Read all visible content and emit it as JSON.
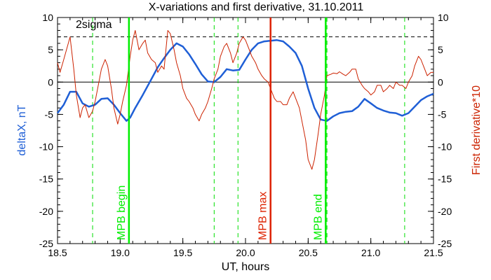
{
  "chart_data": {
    "type": "line",
    "title": "X-variations and first derivative, 31.10.2011",
    "xlabel": "UT, hours",
    "ylabel_left": "deltaX, nT",
    "ylabel_right": "First derivative*10",
    "xlim": [
      18.5,
      21.5
    ],
    "ylim": [
      -25,
      10
    ],
    "x_ticks": [
      "18.5",
      "19.0",
      "19.5",
      "20.0",
      "20.5",
      "21.0",
      "21.5"
    ],
    "y_ticks": [
      "10",
      "5",
      "0",
      "-5",
      "-10",
      "-15",
      "-20",
      "-25"
    ],
    "series": [
      {
        "name": "deltaX, nT",
        "color": "#1f5fd6",
        "x": [
          18.5,
          18.55,
          18.6,
          18.65,
          18.7,
          18.75,
          18.8,
          18.85,
          18.9,
          18.95,
          19.0,
          19.05,
          19.08,
          19.12,
          19.18,
          19.25,
          19.3,
          19.35,
          19.4,
          19.45,
          19.5,
          19.55,
          19.6,
          19.65,
          19.7,
          19.75,
          19.8,
          19.85,
          19.9,
          19.95,
          20.0,
          20.05,
          20.1,
          20.15,
          20.2,
          20.25,
          20.3,
          20.35,
          20.4,
          20.45,
          20.5,
          20.55,
          20.6,
          20.65,
          20.7,
          20.75,
          20.8,
          20.85,
          20.9,
          20.95,
          21.0,
          21.05,
          21.1,
          21.15,
          21.2,
          21.25,
          21.3,
          21.35,
          21.4,
          21.45,
          21.5
        ],
        "y": [
          -4.8,
          -3.5,
          -1.5,
          -1.5,
          -3.3,
          -3.8,
          -3.5,
          -2.6,
          -2.5,
          -3.5,
          -4.8,
          -6.0,
          -5.5,
          -4.0,
          -2.0,
          0.5,
          2.3,
          3.7,
          5.0,
          6.0,
          5.5,
          4.3,
          2.8,
          1.2,
          0.1,
          0.0,
          0.8,
          2.0,
          1.8,
          1.9,
          3.5,
          5.0,
          6.0,
          6.3,
          6.4,
          6.5,
          6.3,
          5.5,
          4.5,
          2.5,
          -1.0,
          -4.0,
          -5.8,
          -6.0,
          -5.3,
          -4.8,
          -4.6,
          -4.5,
          -3.8,
          -2.6,
          -3.3,
          -4.0,
          -4.4,
          -4.7,
          -4.8,
          -5.2,
          -4.8,
          -3.8,
          -2.8,
          -2.2,
          -1.8
        ]
      },
      {
        "name": "First derivative*10",
        "color": "#cc2200",
        "x": [
          18.5,
          18.52,
          18.55,
          18.6,
          18.63,
          18.65,
          18.68,
          18.7,
          18.72,
          18.75,
          18.78,
          18.8,
          18.83,
          18.85,
          18.88,
          18.9,
          18.93,
          18.95,
          18.98,
          19.0,
          19.02,
          19.05,
          19.08,
          19.1,
          19.12,
          19.15,
          19.18,
          19.2,
          19.22,
          19.25,
          19.28,
          19.3,
          19.33,
          19.35,
          19.38,
          19.4,
          19.43,
          19.45,
          19.48,
          19.5,
          19.53,
          19.55,
          19.58,
          19.6,
          19.63,
          19.65,
          19.68,
          19.7,
          19.73,
          19.75,
          19.78,
          19.8,
          19.83,
          19.85,
          19.88,
          19.9,
          19.93,
          19.95,
          19.98,
          20.0,
          20.03,
          20.05,
          20.08,
          20.1,
          20.13,
          20.15,
          20.18,
          20.2,
          20.23,
          20.25,
          20.28,
          20.3,
          20.33,
          20.35,
          20.38,
          20.4,
          20.43,
          20.45,
          20.48,
          20.5,
          20.53,
          20.55,
          20.58,
          20.6,
          20.63,
          20.65,
          20.68,
          20.7,
          20.73,
          20.75,
          20.78,
          20.8,
          20.83,
          20.85,
          20.88,
          20.9,
          20.93,
          20.95,
          20.98,
          21.0,
          21.03,
          21.05,
          21.08,
          21.1,
          21.13,
          21.15,
          21.18,
          21.2,
          21.23,
          21.25,
          21.28,
          21.3,
          21.33,
          21.35,
          21.38,
          21.4,
          21.43,
          21.45,
          21.48,
          21.5
        ],
        "y": [
          3.0,
          1.5,
          3.5,
          7.0,
          2.0,
          -2.0,
          -5.5,
          -4.0,
          -3.5,
          -5.5,
          -4.5,
          -3.0,
          0.0,
          2.0,
          3.5,
          2.5,
          -1.0,
          -4.0,
          -6.5,
          -5.0,
          -3.0,
          -0.5,
          4.0,
          6.5,
          8.0,
          5.0,
          6.0,
          6.5,
          4.5,
          3.5,
          3.0,
          1.5,
          2.5,
          2.0,
          8.0,
          7.5,
          5.0,
          3.0,
          1.0,
          -1.0,
          -2.5,
          -3.0,
          -4.0,
          -5.0,
          -6.0,
          -5.0,
          -4.0,
          -3.0,
          -1.0,
          0.5,
          2.0,
          4.0,
          5.5,
          6.0,
          4.5,
          3.0,
          4.5,
          6.0,
          7.0,
          6.5,
          5.0,
          4.0,
          3.0,
          2.0,
          1.0,
          0.5,
          0.0,
          -1.0,
          -2.5,
          -3.0,
          -3.0,
          -3.5,
          -3.5,
          -2.5,
          -1.5,
          -2.5,
          -4.0,
          -6.0,
          -9.0,
          -12.0,
          -13.5,
          -12.0,
          -8.0,
          -5.0,
          -2.0,
          1.0,
          1.2,
          1.4,
          1.3,
          1.6,
          1.2,
          1.0,
          1.5,
          2.0,
          2.0,
          0.5,
          -0.5,
          -1.0,
          -1.5,
          -2.0,
          -1.5,
          -0.5,
          -0.5,
          -1.5,
          -1.0,
          -0.5,
          -1.0,
          0.0,
          -0.5,
          -0.5,
          -1.0,
          0.0,
          1.0,
          2.5,
          4.0,
          3.5,
          2.0,
          1.0,
          1.5,
          1.5
        ]
      }
    ],
    "sigma_levels": [
      7,
      -25
    ],
    "sigma_label": "2sigma",
    "zero_line": 0,
    "vlines_solid": [
      {
        "x": 19.07,
        "color": "#00ee00",
        "label": "MPB begin"
      },
      {
        "x": 20.2,
        "color": "#dd2200",
        "label": "MPB max"
      },
      {
        "x": 20.64,
        "color": "#00ee00",
        "label": "MPB end"
      }
    ],
    "vlines_dashed": [
      18.78,
      19.75,
      19.94,
      20.65,
      21.27
    ],
    "grid": false,
    "legend": "none"
  }
}
